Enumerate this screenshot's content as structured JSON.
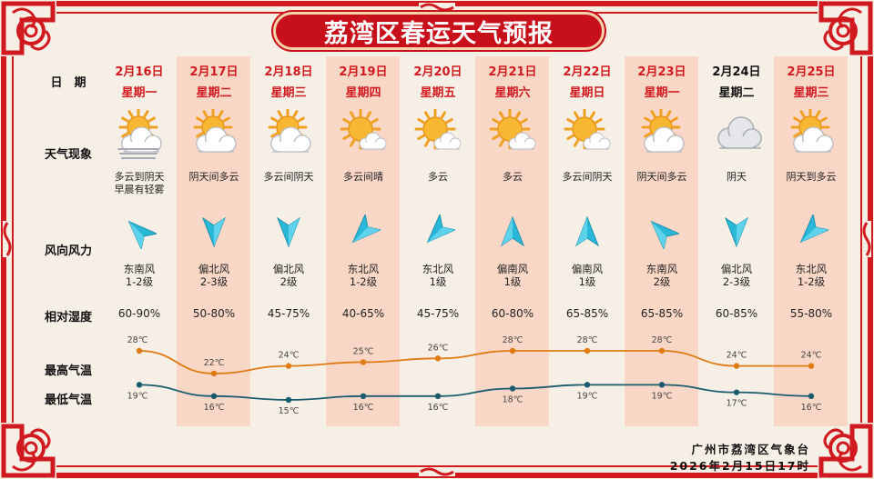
{
  "title": "荔湾区春运天气预报",
  "labels": {
    "date": "日　期",
    "weather": "天气现象",
    "wind": "风向风力",
    "humidity": "相对湿度",
    "high": "最高气温",
    "low": "最低气温"
  },
  "days": [
    {
      "date": "2月16日",
      "weekday": "星期一",
      "icon": "fog-sun-cloud-icon",
      "condition": "多云到阴天\n早晨有轻雾",
      "wind_direction": "东南风",
      "wind_force": "1-2级",
      "humidity": "60-90%",
      "high": "28℃",
      "low": "19℃"
    },
    {
      "date": "2月17日",
      "weekday": "星期二",
      "icon": "sun-cloud-icon",
      "condition": "阴天间多云",
      "wind_direction": "偏北风",
      "wind_force": "2-3级",
      "humidity": "50-80%",
      "high": "22℃",
      "low": "16℃"
    },
    {
      "date": "2月18日",
      "weekday": "星期三",
      "icon": "sun-cloud-icon",
      "condition": "多云间阴天",
      "wind_direction": "偏北风",
      "wind_force": "2级",
      "humidity": "45-75%",
      "high": "24℃",
      "low": "15℃"
    },
    {
      "date": "2月19日",
      "weekday": "星期四",
      "icon": "sun-small-cloud-icon",
      "condition": "多云间晴",
      "wind_direction": "东北风",
      "wind_force": "1-2级",
      "humidity": "40-65%",
      "high": "25℃",
      "low": "16℃"
    },
    {
      "date": "2月20日",
      "weekday": "星期五",
      "icon": "sun-small-cloud-icon",
      "condition": "多云",
      "wind_direction": "东北风",
      "wind_force": "1级",
      "humidity": "45-75%",
      "high": "26℃",
      "low": "16℃"
    },
    {
      "date": "2月21日",
      "weekday": "星期六",
      "icon": "sun-small-cloud-icon",
      "condition": "多云",
      "wind_direction": "偏南风",
      "wind_force": "1级",
      "humidity": "60-80%",
      "high": "28℃",
      "low": "18℃"
    },
    {
      "date": "2月22日",
      "weekday": "星期日",
      "icon": "sun-small-cloud-icon",
      "condition": "多云间阴天",
      "wind_direction": "偏南风",
      "wind_force": "1级",
      "humidity": "65-85%",
      "high": "28℃",
      "low": "19℃"
    },
    {
      "date": "2月23日",
      "weekday": "星期一",
      "icon": "sun-cloud-icon",
      "condition": "阴天间多云",
      "wind_direction": "东南风",
      "wind_force": "2级",
      "humidity": "65-85%",
      "high": "28℃",
      "low": "19℃"
    },
    {
      "date": "2月24日",
      "weekday": "星期二",
      "icon": "cloudy-icon",
      "condition": "阴天",
      "wind_direction": "偏北风",
      "wind_force": "2-3级",
      "humidity": "60-85%",
      "high": "24℃",
      "low": "17℃"
    },
    {
      "date": "2月25日",
      "weekday": "星期三",
      "icon": "sun-cloud-icon",
      "condition": "阴天到多云",
      "wind_direction": "东北风",
      "wind_force": "1-2级",
      "humidity": "55-80%",
      "high": "24℃",
      "low": "16℃"
    }
  ],
  "chart_data": {
    "type": "line",
    "categories": [
      "2月16日",
      "2月17日",
      "2月18日",
      "2月19日",
      "2月20日",
      "2月21日",
      "2月22日",
      "2月23日",
      "2月24日",
      "2月25日"
    ],
    "series": [
      {
        "name": "最高气温",
        "values": [
          28,
          22,
          24,
          25,
          26,
          28,
          28,
          28,
          24,
          24
        ],
        "color": "#e07b12"
      },
      {
        "name": "最低气温",
        "values": [
          19,
          16,
          15,
          16,
          16,
          18,
          19,
          19,
          17,
          16
        ],
        "color": "#1a5c6e"
      }
    ],
    "unit": "℃"
  },
  "footer": {
    "agency": "广州市荔湾区气象台",
    "issued": "2026年2月15日17时"
  },
  "colors": {
    "border_red": "#d01a1f",
    "band_pink": "#f9d7c7",
    "date_red": "#d01a1f",
    "date_black": "#111111",
    "arrow_cyan": "#29b8d8",
    "high_line": "#e07b12",
    "low_line": "#1a5c6e"
  }
}
